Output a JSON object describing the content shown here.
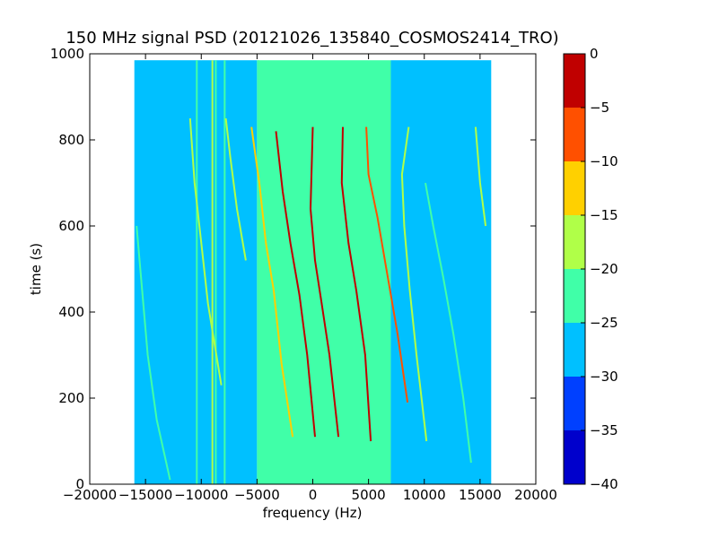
{
  "chart_data": {
    "type": "heatmap",
    "title": "150 MHz signal PSD (20121026_135840_COSMOS2414_TRO)",
    "xlabel": "frequency (Hz)",
    "ylabel": "time (s)",
    "xlim": [
      -20000,
      20000
    ],
    "ylim": [
      0,
      1000
    ],
    "xticks": [
      -20000,
      -15000,
      -10000,
      -5000,
      0,
      5000,
      10000,
      15000,
      20000
    ],
    "yticks": [
      0,
      200,
      400,
      600,
      800,
      1000
    ],
    "data_extent": {
      "x": [
        -16000,
        16000
      ],
      "y": [
        0,
        985
      ]
    },
    "band_levels": [
      {
        "x0": -16000,
        "x1": -5000,
        "level": -27.5
      },
      {
        "x0": -5000,
        "x1": 7000,
        "level": -22.5
      },
      {
        "x0": 7000,
        "x1": 16000,
        "level": -27.5
      }
    ],
    "vertical_lines": [
      {
        "x": -10400,
        "level": -22.5
      },
      {
        "x": -9000,
        "level": -17.5
      },
      {
        "x": -8700,
        "level": -22.5
      },
      {
        "x": -7900,
        "level": -22.5
      },
      {
        "x": -4900,
        "level": -22.5
      }
    ],
    "traces": [
      {
        "points": [
          [
            -12800,
            10
          ],
          [
            -14000,
            150
          ],
          [
            -14800,
            300
          ],
          [
            -15300,
            450
          ],
          [
            -15800,
            600
          ]
        ],
        "level": -22.5
      },
      {
        "points": [
          [
            -8200,
            230
          ],
          [
            -9400,
            420
          ],
          [
            -10000,
            560
          ],
          [
            -10600,
            700
          ],
          [
            -11000,
            850
          ]
        ],
        "level": -17.5
      },
      {
        "points": [
          [
            -6000,
            520
          ],
          [
            -6800,
            640
          ],
          [
            -7400,
            760
          ],
          [
            -7800,
            850
          ]
        ],
        "level": -17.5
      },
      {
        "points": [
          [
            -1800,
            110
          ],
          [
            -2800,
            280
          ],
          [
            -3500,
            450
          ],
          [
            -4200,
            560
          ],
          [
            -4800,
            700
          ],
          [
            -5500,
            830
          ]
        ],
        "level": -12.5
      },
      {
        "points": [
          [
            200,
            110
          ],
          [
            -500,
            300
          ],
          [
            -1200,
            440
          ],
          [
            -2000,
            560
          ],
          [
            -2700,
            680
          ],
          [
            -3300,
            820
          ]
        ],
        "level": -2.5
      },
      {
        "points": [
          [
            2300,
            110
          ],
          [
            1500,
            300
          ],
          [
            800,
            420
          ],
          [
            200,
            520
          ],
          [
            -200,
            640
          ],
          [
            0,
            830
          ]
        ],
        "level": -2.5
      },
      {
        "points": [
          [
            5200,
            100
          ],
          [
            4700,
            300
          ],
          [
            3900,
            450
          ],
          [
            3200,
            560
          ],
          [
            2600,
            700
          ],
          [
            2700,
            830
          ]
        ],
        "level": -2.5
      },
      {
        "points": [
          [
            8500,
            190
          ],
          [
            7600,
            350
          ],
          [
            6600,
            500
          ],
          [
            5800,
            620
          ],
          [
            5000,
            720
          ],
          [
            4800,
            830
          ]
        ],
        "level": -7.5
      },
      {
        "points": [
          [
            10200,
            100
          ],
          [
            9300,
            300
          ],
          [
            8700,
            450
          ],
          [
            8200,
            600
          ],
          [
            8000,
            720
          ],
          [
            8600,
            830
          ]
        ],
        "level": -17.5
      },
      {
        "points": [
          [
            14200,
            50
          ],
          [
            13500,
            200
          ],
          [
            12600,
            350
          ],
          [
            11700,
            480
          ],
          [
            10800,
            600
          ],
          [
            10100,
            700
          ]
        ],
        "level": -22.5
      },
      {
        "points": [
          [
            15500,
            600
          ],
          [
            15000,
            700
          ],
          [
            14600,
            830
          ]
        ],
        "level": -17.5
      }
    ],
    "colorbar": {
      "min": -40,
      "max": 0,
      "ticks": [
        0,
        -5,
        -10,
        -15,
        -20,
        -25,
        -30,
        -35,
        -40
      ],
      "bands": [
        {
          "from": -40,
          "to": -35,
          "color": "#0000cc"
        },
        {
          "from": -35,
          "to": -30,
          "color": "#0040ff"
        },
        {
          "from": -30,
          "to": -25,
          "color": "#00c0ff"
        },
        {
          "from": -25,
          "to": -20,
          "color": "#40ffa8"
        },
        {
          "from": -20,
          "to": -15,
          "color": "#b0ff48"
        },
        {
          "from": -15,
          "to": -10,
          "color": "#ffd000"
        },
        {
          "from": -10,
          "to": -5,
          "color": "#ff5000"
        },
        {
          "from": -5,
          "to": 0,
          "color": "#c00000"
        }
      ]
    }
  }
}
